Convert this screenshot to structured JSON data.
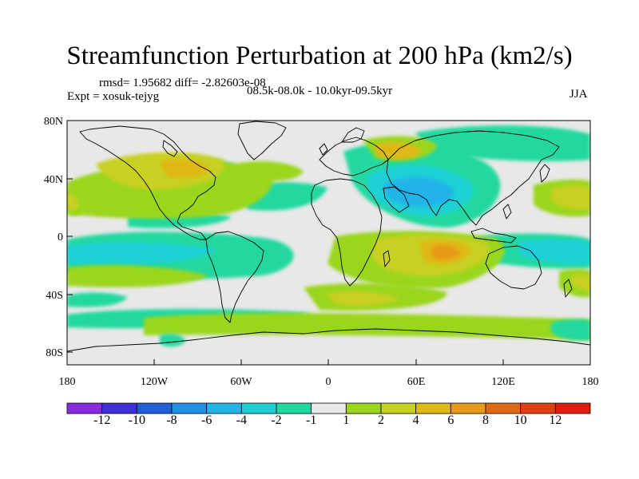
{
  "title": "Streamfunction Perturbation at 200 hPa (km2/s)",
  "stats": "rmsd= 1.95682 diff= -2.82603e-08",
  "experiment": "Expt = xosuk-tejyg",
  "period": "08.5k-08.0k - 10.0kyr-09.5kyr",
  "season": "JJA",
  "axes": {
    "lat_labels": [
      "80N",
      "40N",
      "0",
      "40S",
      "80S"
    ],
    "lon_labels": [
      "180",
      "120W",
      "60W",
      "0",
      "60E",
      "120E",
      "180"
    ]
  },
  "colorbar": {
    "labels": [
      "-12",
      "-10",
      "-8",
      "-6",
      "-4",
      "-2",
      "-1",
      "1",
      "2",
      "4",
      "6",
      "8",
      "10",
      "12"
    ],
    "colors": [
      "#8a2be2",
      "#3f2fd6",
      "#1f5fd8",
      "#1e90e6",
      "#22b4e8",
      "#1ed0d6",
      "#20d8a0",
      "#e8e8e8",
      "#9ad61e",
      "#c8d020",
      "#e0b818",
      "#e89a18",
      "#e06a12",
      "#e04010",
      "#e01e10"
    ]
  },
  "fill_colors": {
    "background": "#e8e8e8",
    "neg1": "#20d8a0",
    "neg2": "#1ed0d6",
    "neg3": "#22b4e8",
    "neg4": "#1e90e6",
    "pos1": "#9ad61e",
    "pos2": "#c8d020",
    "pos3": "#e0b818",
    "pos4": "#e89a18"
  }
}
